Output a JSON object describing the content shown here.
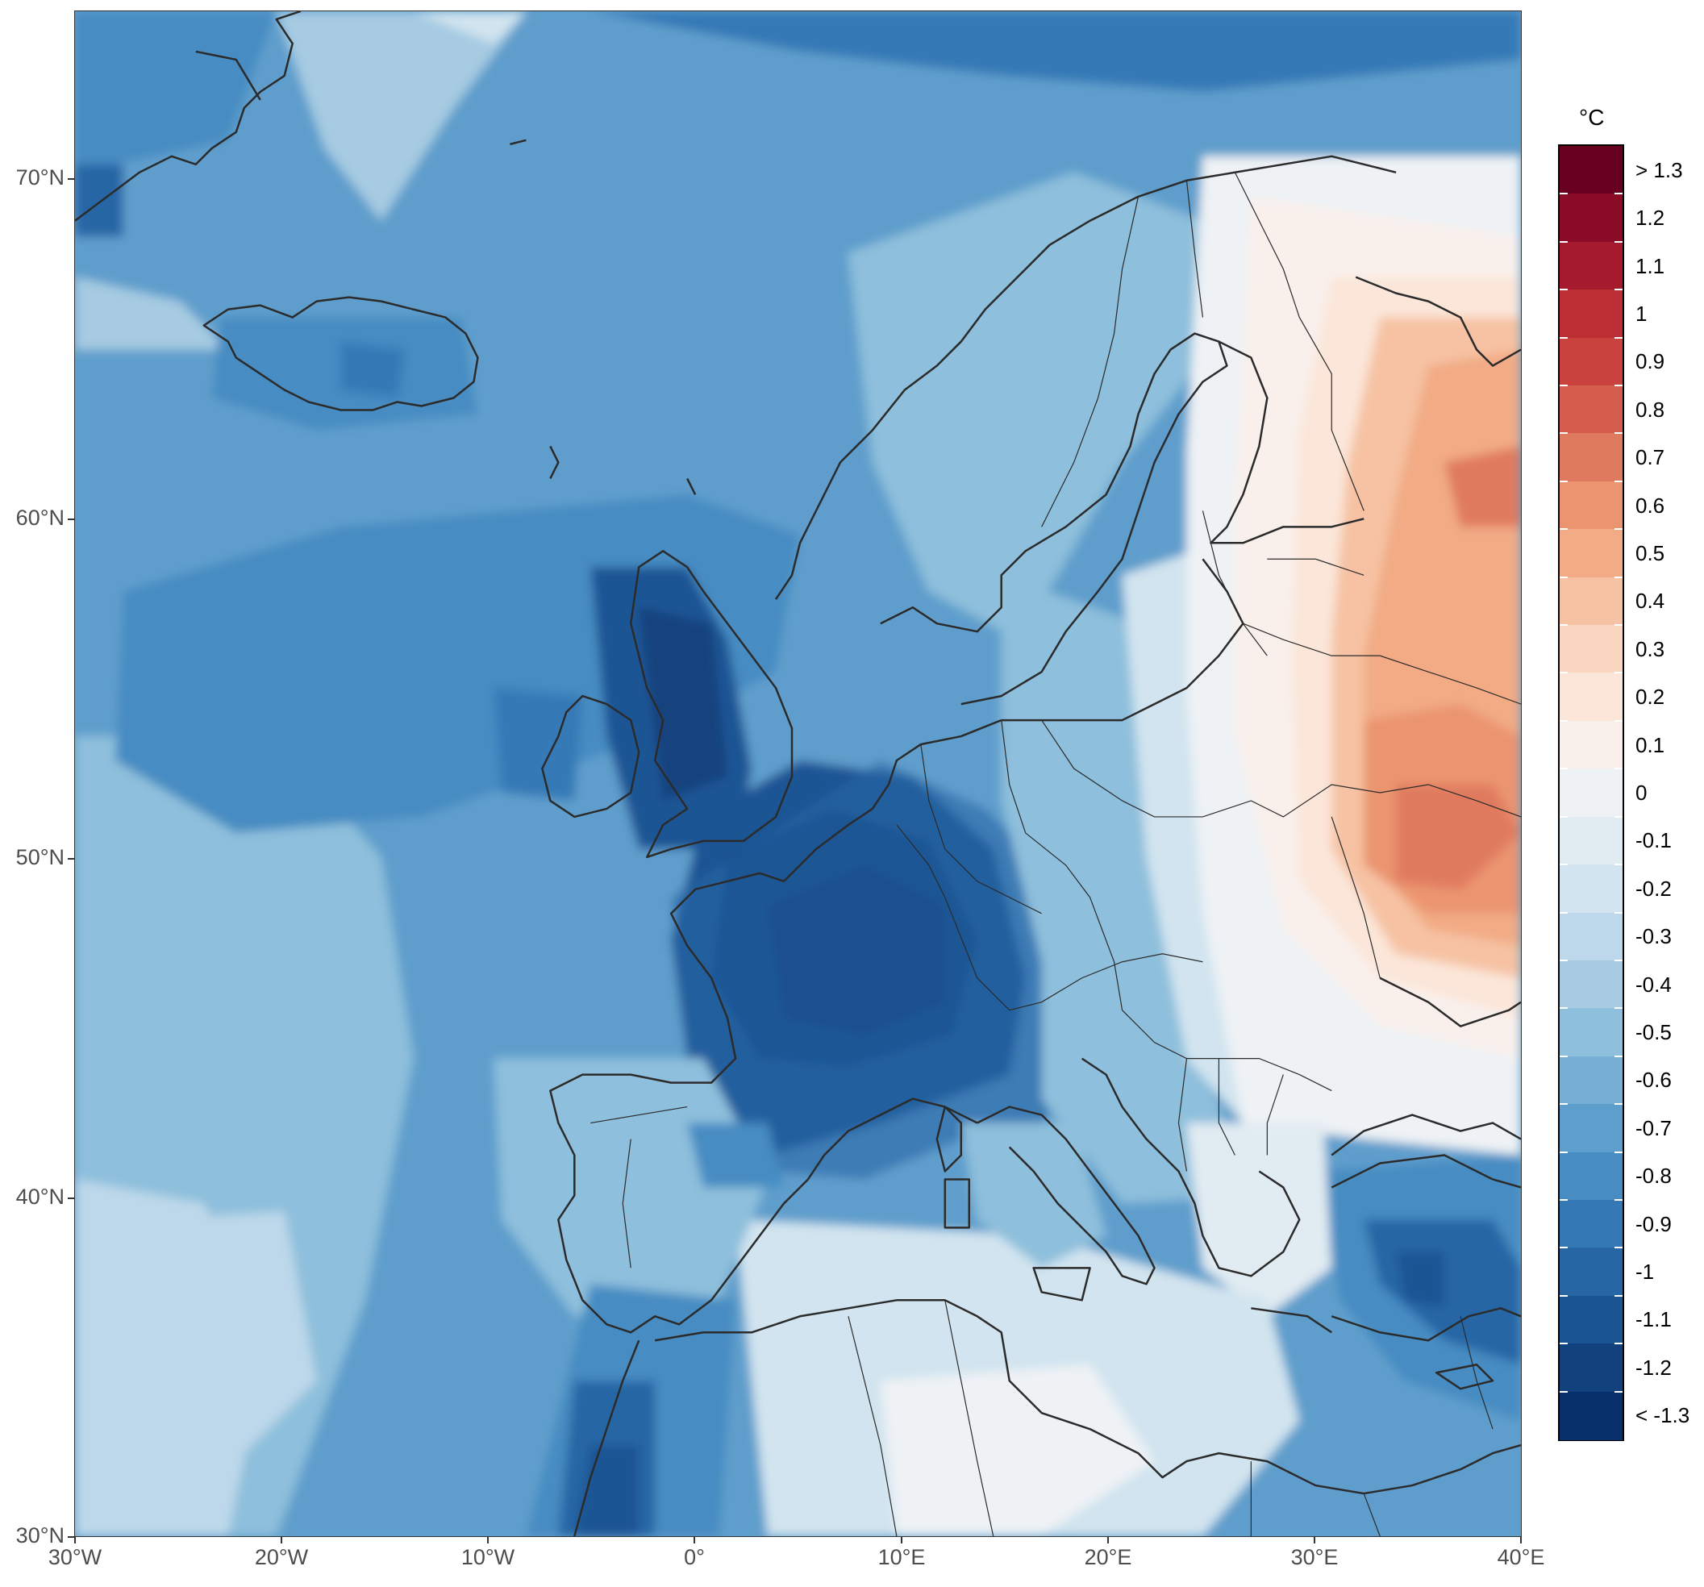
{
  "map": {
    "x_ticks": [
      "30°W",
      "20°W",
      "10°W",
      "0°",
      "10°E",
      "20°E",
      "30°E",
      "40°E"
    ],
    "y_ticks": [
      "70°N",
      "60°N",
      "50°N",
      "40°N",
      "30°N"
    ],
    "extent": {
      "lon": [
        -30,
        40
      ],
      "lat": [
        30,
        75
      ]
    },
    "projection": "plate carree",
    "field": "temperature anomaly"
  },
  "legend": {
    "title": "°C",
    "labels": [
      "> 1.3",
      "1.2",
      "1.1",
      "1",
      "0.9",
      "0.8",
      "0.7",
      "0.6",
      "0.5",
      "0.4",
      "0.3",
      "0.2",
      "0.1",
      "0",
      "-0.1",
      "-0.2",
      "-0.3",
      "-0.4",
      "-0.5",
      "-0.6",
      "-0.7",
      "-0.8",
      "-0.9",
      "-1",
      "-1.1",
      "-1.2",
      "< -1.3"
    ],
    "colors": [
      "#67001f",
      "#8a0c26",
      "#a51a2c",
      "#bb2f34",
      "#c9423d",
      "#d55d4d",
      "#e07a5e",
      "#eb946f",
      "#f2ab85",
      "#f6c2a3",
      "#f9d6c0",
      "#fbe6d9",
      "#f9f0ec",
      "#eef2f5",
      "#e1ebf2",
      "#d1e4ef",
      "#bdd8ea",
      "#a6cbe2",
      "#8ebfdc",
      "#77afd5",
      "#5e9ecc",
      "#478cc2",
      "#3479b6",
      "#2766a5",
      "#1b5594",
      "#12427e",
      "#08306b"
    ]
  },
  "regions": {
    "strongest_cooling": "France, Benelux, England",
    "strongest_warming": "Ukraine, Belarus, western Russia"
  }
}
